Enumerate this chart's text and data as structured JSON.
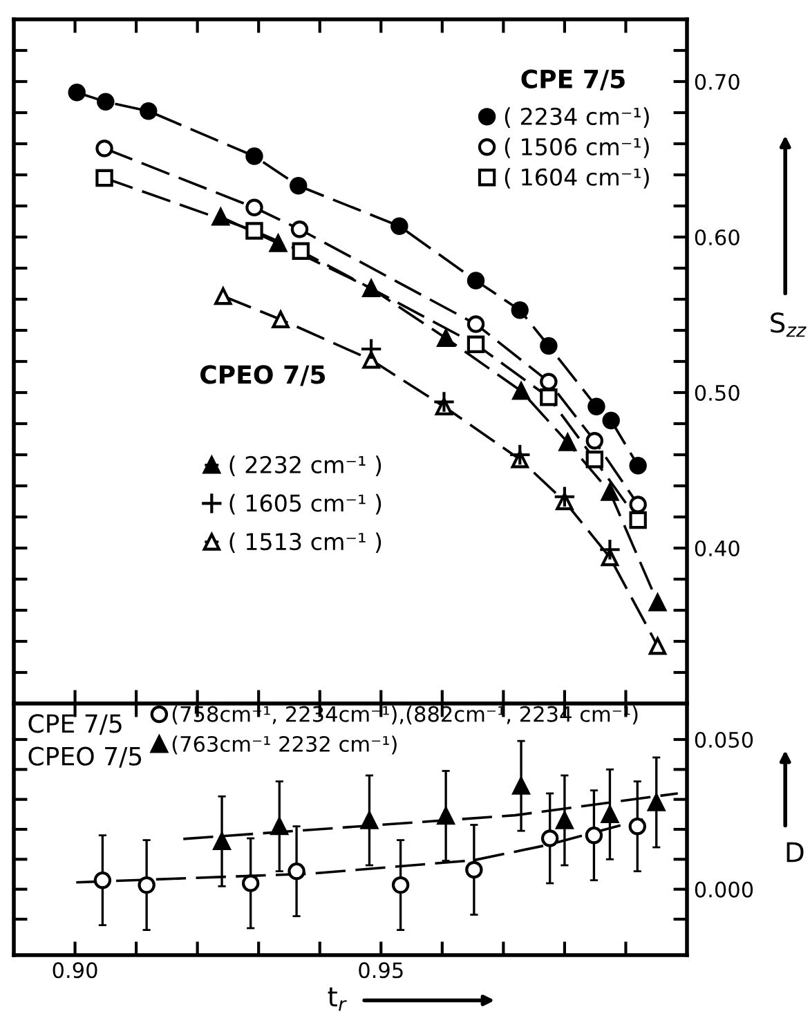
{
  "chart_data": [
    {
      "type": "line",
      "ylabel": "S$_{zz}$",
      "annotations": [
        "CPE 7/5",
        "CPEO 7/5"
      ],
      "legend": "top right",
      "line_style": "dashed",
      "tick_labels": "y",
      "xlim": [
        0.89,
        1.0
      ],
      "ylim": [
        0.3,
        0.74
      ],
      "xticks": [
        {
          "value": 0.9,
          "label": null
        },
        {
          "value": 0.91,
          "label": null
        },
        {
          "value": 0.92,
          "label": null
        },
        {
          "value": 0.93,
          "label": null
        },
        {
          "value": 0.94,
          "label": null
        },
        {
          "value": 0.95,
          "label": null
        },
        {
          "value": 0.96,
          "label": null
        },
        {
          "value": 0.97,
          "label": null
        },
        {
          "value": 0.98,
          "label": null
        },
        {
          "value": 0.99,
          "label": null
        }
      ],
      "yticks": [
        {
          "value": 0.32,
          "label": null
        },
        {
          "value": 0.34,
          "label": null
        },
        {
          "value": 0.36,
          "label": null
        },
        {
          "value": 0.38,
          "label": null
        },
        {
          "value": 0.4,
          "label": "0.40"
        },
        {
          "value": 0.42,
          "label": null
        },
        {
          "value": 0.44,
          "label": null
        },
        {
          "value": 0.46,
          "label": null
        },
        {
          "value": 0.48,
          "label": null
        },
        {
          "value": 0.5,
          "label": "0.50"
        },
        {
          "value": 0.52,
          "label": null
        },
        {
          "value": 0.54,
          "label": null
        },
        {
          "value": 0.56,
          "label": null
        },
        {
          "value": 0.58,
          "label": null
        },
        {
          "value": 0.6,
          "label": "0.60"
        },
        {
          "value": 0.62,
          "label": null
        },
        {
          "value": 0.64,
          "label": null
        },
        {
          "value": 0.66,
          "label": null
        },
        {
          "value": 0.68,
          "label": null
        },
        {
          "value": 0.7,
          "label": "0.70"
        },
        {
          "value": 0.72,
          "label": null
        }
      ],
      "series": [
        {
          "name": "( 2234 cm⁻¹)",
          "color": "#000000",
          "marker": "circle",
          "x": [
            0.9003,
            0.905,
            0.912,
            0.9293,
            0.9365,
            0.953,
            0.9655,
            0.9727,
            0.9774,
            0.9852,
            0.9876,
            0.992
          ],
          "values": [
            0.693,
            0.687,
            0.681,
            0.652,
            0.633,
            0.607,
            0.572,
            0.553,
            0.53,
            0.491,
            0.482,
            0.453
          ]
        },
        {
          "name": "( 1506 cm⁻¹)",
          "color": "#ffffff",
          "marker": "circle",
          "x": [
            0.9048,
            0.9293,
            0.9367,
            0.9655,
            0.9774,
            0.9849,
            0.992
          ],
          "values": [
            0.657,
            0.619,
            0.605,
            0.544,
            0.507,
            0.469,
            0.428
          ]
        },
        {
          "name": "( 1604 cm⁻¹)",
          "color": "#ffffff",
          "marker": "square",
          "x": [
            0.9048,
            0.9293,
            0.9369,
            0.9655,
            0.9774,
            0.9849,
            0.992
          ],
          "values": [
            0.638,
            0.604,
            0.591,
            0.531,
            0.497,
            0.457,
            0.418
          ]
        },
        {
          "name": "( 2232 cm⁻¹ )",
          "color": "#000000",
          "marker": "triangle",
          "x": [
            0.9238,
            0.9332,
            0.9484,
            0.9606,
            0.9729,
            0.9805,
            0.9874,
            0.9952
          ],
          "values": [
            0.613,
            0.596,
            0.567,
            0.535,
            0.501,
            0.468,
            0.436,
            0.365
          ]
        },
        {
          "name": "( 1605 cm⁻¹ )",
          "color": "#000000",
          "marker": "plus",
          "type": "scatter",
          "x": [
            0.9484,
            0.9603,
            0.9727,
            0.98,
            0.9874
          ],
          "values": [
            0.528,
            0.494,
            0.46,
            0.433,
            0.399
          ]
        },
        {
          "name": "( 1513 cm⁻¹ )",
          "color": "#ffffff",
          "marker": "triangle",
          "x": [
            0.9242,
            0.9336,
            0.9484,
            0.9603,
            0.9727,
            0.98,
            0.9874,
            0.9952
          ],
          "values": [
            0.562,
            0.547,
            0.521,
            0.491,
            0.457,
            0.43,
            0.394,
            0.337
          ]
        }
      ]
    },
    {
      "type": "scatter",
      "xlabel": "t$_{r}$",
      "ylabel": "D",
      "annotations": [
        "CPE 7/5",
        "CPEO 7/5"
      ],
      "legend": "top",
      "xlim": [
        0.89,
        1.0
      ],
      "ylim": [
        -0.022,
        0.062
      ],
      "xticks": [
        {
          "value": 0.9,
          "label": "0.90"
        },
        {
          "value": 0.91,
          "label": null
        },
        {
          "value": 0.92,
          "label": null
        },
        {
          "value": 0.93,
          "label": null
        },
        {
          "value": 0.94,
          "label": null
        },
        {
          "value": 0.95,
          "label": "0.95"
        },
        {
          "value": 0.96,
          "label": null
        },
        {
          "value": 0.97,
          "label": null
        },
        {
          "value": 0.98,
          "label": null
        },
        {
          "value": 0.99,
          "label": null
        }
      ],
      "yticks": [
        {
          "value": -0.01,
          "label": null
        },
        {
          "value": 0.0,
          "label": "0.000"
        },
        {
          "value": 0.01,
          "label": null
        },
        {
          "value": 0.02,
          "label": null
        },
        {
          "value": 0.03,
          "label": null
        },
        {
          "value": 0.04,
          "label": null
        },
        {
          "value": 0.05,
          "label": "0.050"
        }
      ],
      "series": [
        {
          "name": "(758cm⁻¹, 2234cm⁻¹),(882cm⁻¹, 2234 cm⁻¹)",
          "color": "#ffffff",
          "marker": "circle",
          "x": [
            0.9045,
            0.9117,
            0.9287,
            0.9362,
            0.9532,
            0.9652,
            0.9776,
            0.9848,
            0.9919
          ],
          "values": [
            0.003,
            0.0014,
            0.002,
            0.006,
            0.0014,
            0.0065,
            0.017,
            0.018,
            0.021
          ],
          "errors": [
            0.015,
            0.015,
            0.015,
            0.015,
            0.015,
            0.015,
            0.015,
            0.015,
            0.015
          ]
        },
        {
          "name": "(763cm⁻¹ 2232 cm⁻¹)",
          "color": "#000000",
          "marker": "triangle",
          "x": [
            0.924,
            0.9334,
            0.9481,
            0.9606,
            0.9729,
            0.98,
            0.9874,
            0.995
          ],
          "values": [
            0.016,
            0.021,
            0.023,
            0.0245,
            0.0345,
            0.023,
            0.025,
            0.029
          ],
          "errors": [
            0.015,
            0.015,
            0.015,
            0.015,
            0.015,
            0.015,
            0.015,
            0.015
          ]
        },
        {
          "type": "line",
          "line_style": "dashed",
          "color": "#000000",
          "x": [
            0.9002,
            0.9385,
            0.9652,
            0.977,
            0.9928
          ],
          "values": [
            0.0023,
            0.0052,
            0.0097,
            0.0147,
            0.0233
          ]
        },
        {
          "type": "line",
          "line_style": "dashed",
          "color": "#000000",
          "x": [
            0.9177,
            0.9719,
            0.9985
          ],
          "values": [
            0.0168,
            0.0247,
            0.032
          ]
        }
      ]
    }
  ]
}
